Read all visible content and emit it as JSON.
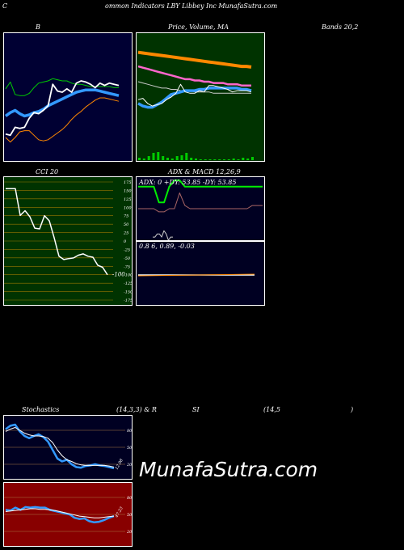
{
  "header": {
    "c": "C",
    "title": "ommon  Indicators LBY Libbey Inc MunafaSutra.com"
  },
  "labels": {
    "b": "B",
    "price_volume_ma": "Price,  Volume,  MA",
    "bands": "Bands 20,2",
    "cci": "CCI 20",
    "adx_macd": "ADX  & MACD 12,26,9",
    "stoch": "Stochastics",
    "stoch_params": "(14,3,3) & R",
    "si": "SI",
    "rsi_params": "(14,5",
    "close_paren": ")"
  },
  "colors": {
    "bollinger_bg": "#000033",
    "price_bg": "#003300",
    "cci_bg": "#003300",
    "adx_bg": "#000022",
    "stoch_bg": "#000022",
    "rsi_bg": "#880000",
    "blue": "#3399ff",
    "orange": "#ff8800",
    "green": "#00cc00",
    "pink": "#ff66cc"
  },
  "adx": {
    "text": "ADX: 0   +DY: 53.85 -DY: 53.85"
  },
  "macd": {
    "text": "0.8              6,  0.89,  -0.03"
  },
  "watermark": "MunafaSutra.com",
  "chart_data": [
    {
      "type": "line",
      "name": "Bollinger Bands",
      "series": [
        {
          "name": "price",
          "values": [
            0.82,
            0.83,
            0.76,
            0.77,
            0.76,
            0.68,
            0.63,
            0.64,
            0.61,
            0.57,
            0.38,
            0.44,
            0.45,
            0.42,
            0.45,
            0.37,
            0.35,
            0.36,
            0.38,
            0.41,
            0.37,
            0.39,
            0.37,
            0.38,
            0.39
          ]
        },
        {
          "name": "middle",
          "values": [
            0.66,
            0.63,
            0.61,
            0.64,
            0.66,
            0.65,
            0.63,
            0.62,
            0.6,
            0.57,
            0.55,
            0.53,
            0.51,
            0.49,
            0.47,
            0.45,
            0.44,
            0.43,
            0.43,
            0.43,
            0.44,
            0.45,
            0.46,
            0.47,
            0.48
          ]
        },
        {
          "name": "upper",
          "values": [
            0.42,
            0.36,
            0.47,
            0.48,
            0.48,
            0.46,
            0.41,
            0.37,
            0.36,
            0.35,
            0.33,
            0.34,
            0.35,
            0.35,
            0.37,
            0.38,
            0.38,
            0.39,
            0.4,
            0.4,
            0.4,
            0.4,
            0.4,
            0.41,
            0.41
          ]
        },
        {
          "name": "lower",
          "values": [
            0.85,
            0.89,
            0.85,
            0.8,
            0.79,
            0.79,
            0.83,
            0.87,
            0.88,
            0.87,
            0.84,
            0.81,
            0.78,
            0.74,
            0.69,
            0.65,
            0.62,
            0.58,
            0.55,
            0.52,
            0.5,
            0.5,
            0.51,
            0.52,
            0.53
          ]
        }
      ]
    },
    {
      "type": "line",
      "name": "Price Volume MA",
      "series": [
        {
          "name": "price",
          "values": [
            0.52,
            0.51,
            0.55,
            0.57,
            0.56,
            0.55,
            0.52,
            0.5,
            0.47,
            0.4,
            0.46,
            0.47,
            0.47,
            0.45,
            0.46,
            0.41,
            0.41,
            0.42,
            0.43,
            0.44,
            0.46,
            0.45,
            0.45,
            0.45,
            0.46
          ]
        },
        {
          "name": "ma_short",
          "values": [
            0.55,
            0.57,
            0.58,
            0.58,
            0.56,
            0.54,
            0.51,
            0.48,
            0.47,
            0.46,
            0.45,
            0.45,
            0.45,
            0.44,
            0.44,
            0.43,
            0.43,
            0.43,
            0.43,
            0.43,
            0.43,
            0.43,
            0.44,
            0.44,
            0.45
          ]
        },
        {
          "name": "ma_mid",
          "values": [
            0.38,
            0.39,
            0.4,
            0.41,
            0.42,
            0.43,
            0.43,
            0.44,
            0.44,
            0.45,
            0.45,
            0.45,
            0.46,
            0.46,
            0.46,
            0.46,
            0.47,
            0.47,
            0.47,
            0.47,
            0.47,
            0.47,
            0.47,
            0.47,
            0.47
          ]
        },
        {
          "name": "ma_pink",
          "values": [
            0.26,
            0.27,
            0.28,
            0.29,
            0.3,
            0.31,
            0.32,
            0.33,
            0.34,
            0.35,
            0.36,
            0.36,
            0.37,
            0.37,
            0.38,
            0.38,
            0.39,
            0.39,
            0.39,
            0.4,
            0.4,
            0.4,
            0.41,
            0.41,
            0.41
          ]
        },
        {
          "name": "ma_orange",
          "values": [
            0.15,
            0.155,
            0.16,
            0.165,
            0.17,
            0.175,
            0.18,
            0.185,
            0.19,
            0.195,
            0.2,
            0.205,
            0.21,
            0.215,
            0.22,
            0.225,
            0.23,
            0.235,
            0.24,
            0.245,
            0.25,
            0.255,
            0.26,
            0.26,
            0.265
          ]
        },
        {
          "name": "volume",
          "values": [
            0.3,
            0.2,
            0.5,
            0.9,
            1.0,
            0.5,
            0.3,
            0.2,
            0.5,
            0.6,
            0.9,
            0.3,
            0.2,
            0.1,
            0.1,
            0.1,
            0.1,
            0.1,
            0.1,
            0.1,
            0.2,
            0.1,
            0.3,
            0.2,
            0.4
          ]
        }
      ]
    },
    {
      "type": "line",
      "name": "CCI 20",
      "ylim": [
        -175,
        175
      ],
      "ticks": [
        175,
        150,
        125,
        100,
        75,
        50,
        25,
        0,
        -25,
        -50,
        -75,
        -100,
        -125,
        -150,
        -175
      ],
      "series": [
        {
          "name": "cci",
          "values": [
            155,
            155,
            155,
            76,
            90,
            72,
            38,
            36,
            75,
            60,
            10,
            -45,
            -55,
            -52,
            -50,
            -42,
            -38,
            -45,
            -48,
            -72,
            -78,
            -100
          ]
        }
      ],
      "last_label": "-100"
    },
    {
      "type": "line",
      "name": "ADX",
      "series": [
        {
          "name": "adx",
          "values": [
            0.5,
            0.5,
            0.5,
            0.5,
            0.45,
            0.45,
            0.5,
            0.5,
            0.75,
            0.55,
            0.5,
            0.5,
            0.5,
            0.5,
            0.5,
            0.5,
            0.5,
            0.5,
            0.5,
            0.5,
            0.5,
            0.5,
            0.55,
            0.55,
            0.55
          ]
        },
        {
          "name": "dy",
          "values": [
            0.85,
            0.85,
            0.85,
            0.85,
            0.6,
            0.6,
            0.85,
            0.95,
            0.95,
            0.85,
            0.85,
            0.85,
            0.85,
            0.85,
            0.85,
            0.85,
            0.85,
            0.85,
            0.85,
            0.85,
            0.85,
            0.85,
            0.85,
            0.85,
            0.85
          ]
        }
      ]
    },
    {
      "type": "line",
      "name": "Stochastics",
      "ylim": [
        0,
        100
      ],
      "ticks": [
        80,
        50,
        20
      ],
      "last_label": "12.98",
      "series": [
        {
          "name": "k",
          "values": [
            82,
            88,
            90,
            78,
            70,
            66,
            70,
            73,
            68,
            60,
            45,
            30,
            25,
            28,
            20,
            15,
            14,
            17,
            18,
            20,
            18,
            17,
            15,
            13
          ]
        },
        {
          "name": "d",
          "values": [
            78,
            82,
            85,
            80,
            75,
            72,
            70,
            70,
            69,
            66,
            58,
            45,
            35,
            28,
            25,
            21,
            19,
            18,
            18,
            18,
            18,
            18,
            17,
            15
          ]
        }
      ]
    },
    {
      "type": "line",
      "name": "RSI",
      "ylim": [
        0,
        100
      ],
      "ticks": [
        80,
        50,
        20
      ],
      "last_label": "47.23",
      "series": [
        {
          "name": "rsi",
          "values": [
            58,
            57,
            62,
            58,
            63,
            62,
            63,
            62,
            62,
            58,
            56,
            54,
            52,
            50,
            44,
            42,
            43,
            38,
            36,
            37,
            40,
            44,
            47
          ]
        },
        {
          "name": "smooth",
          "values": [
            55,
            56,
            57,
            58,
            59,
            60,
            60,
            59,
            59,
            58,
            57,
            55,
            53,
            51,
            49,
            47,
            46,
            45,
            44,
            44,
            45,
            46,
            47
          ]
        }
      ]
    }
  ]
}
